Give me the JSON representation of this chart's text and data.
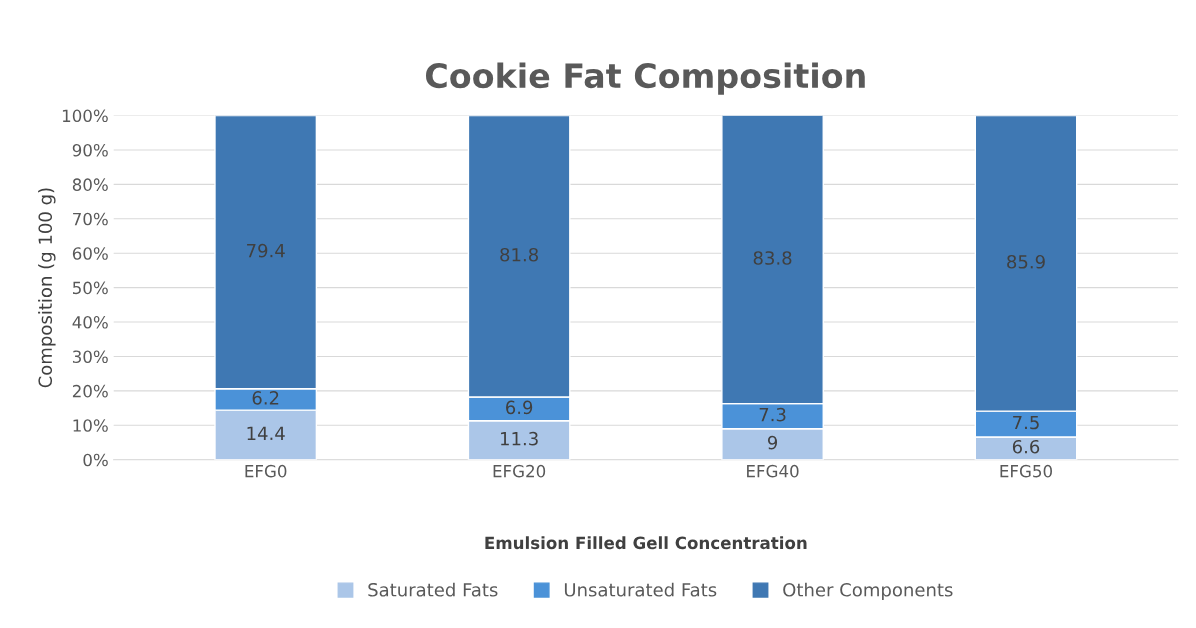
{
  "chart_data": {
    "type": "bar",
    "title": "Cookie Fat Composition",
    "xlabel": "Emulsion Filled Gell Concentration",
    "ylabel": "Composition (g 100 g)",
    "categories": [
      "EFG0",
      "EFG20",
      "EFG40",
      "EFG50"
    ],
    "series": [
      {
        "name": "Saturated Fats",
        "color": "#abc6e8",
        "values": [
          14.4,
          11.3,
          9,
          6.6
        ]
      },
      {
        "name": "Unsaturated Fats",
        "color": "#4b92d8",
        "values": [
          6.2,
          6.9,
          7.3,
          7.5
        ]
      },
      {
        "name": "Other Components",
        "color": "#3f78b3",
        "values": [
          79.4,
          81.8,
          83.8,
          85.9
        ]
      }
    ],
    "stacked": true,
    "data_labels": true,
    "ylim": [
      0,
      100
    ],
    "yticks": [
      {
        "value": 0,
        "label": "0%"
      },
      {
        "value": 10,
        "label": "10%"
      },
      {
        "value": 20,
        "label": "20%"
      },
      {
        "value": 30,
        "label": "30%"
      },
      {
        "value": 40,
        "label": "40%"
      },
      {
        "value": 50,
        "label": "50%"
      },
      {
        "value": 60,
        "label": "60%"
      },
      {
        "value": 70,
        "label": "70%"
      },
      {
        "value": 80,
        "label": "80%"
      },
      {
        "value": 90,
        "label": "90%"
      },
      {
        "value": 100,
        "label": "100%"
      }
    ],
    "grid": "y",
    "legend": "bottom"
  }
}
